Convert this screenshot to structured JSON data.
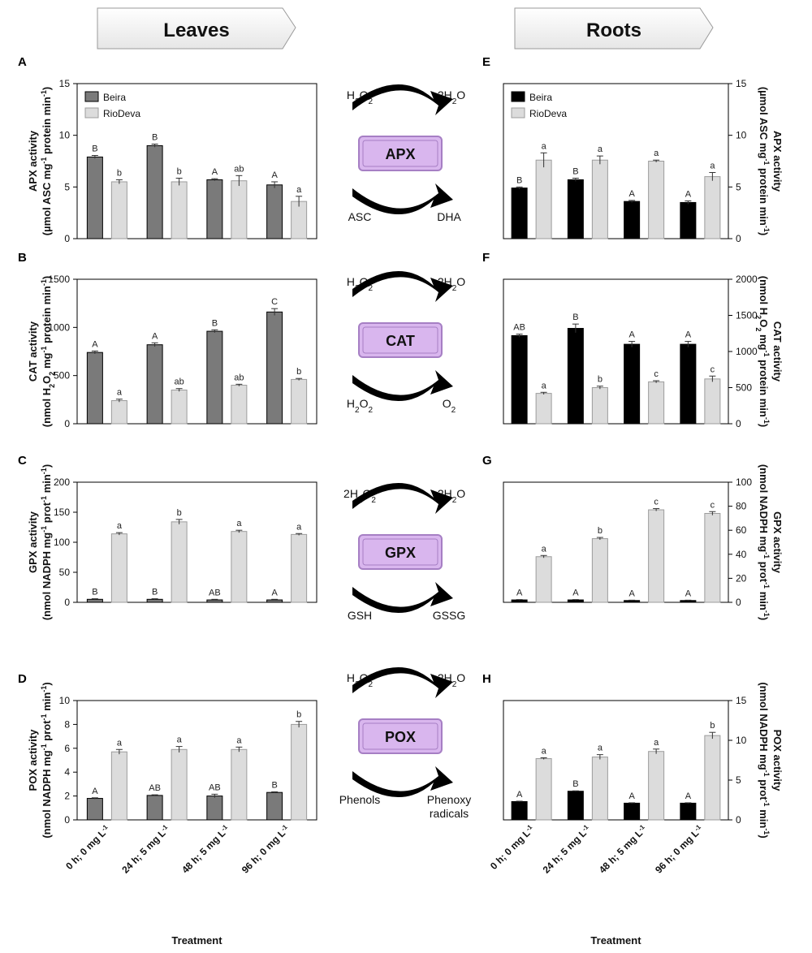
{
  "headers": {
    "left": "Leaves",
    "right": "Roots"
  },
  "x_axis": {
    "categories": [
      "0 h; 0 mg L",
      "24 h; 5 mg L",
      "48 h; 5 mg L",
      "96 h; 0 mg L"
    ],
    "unit_superscript": "-1",
    "label": "Treatment"
  },
  "chart_data": [
    {
      "panel": "A",
      "type": "bar",
      "side": "left",
      "ylabel_line1": "APX activity",
      "ylabel_line2": "(µmol ASC mg",
      "ylabel_line2_sup": "-1",
      "ylabel_line2_tail": " protein min",
      "ylabel_line2_tail_sup": "-1",
      "ylabel_close": ")",
      "ylim": [
        0,
        15
      ],
      "yticks": [
        0,
        5,
        10,
        15
      ],
      "legend": [
        "Beira",
        "RioDeva"
      ],
      "series": [
        {
          "name": "Beira",
          "values": [
            7.9,
            9.0,
            5.7,
            5.2
          ],
          "errors": [
            0.15,
            0.15,
            0.1,
            0.3
          ],
          "labels": [
            "B",
            "B",
            "A",
            "A"
          ]
        },
        {
          "name": "RioDeva",
          "values": [
            5.5,
            5.5,
            5.6,
            3.6
          ],
          "errors": [
            0.2,
            0.35,
            0.5,
            0.5
          ],
          "labels": [
            "b",
            "b",
            "ab",
            "a"
          ]
        }
      ]
    },
    {
      "panel": "B",
      "type": "bar",
      "side": "left",
      "ylabel_line1": "CAT activity",
      "ylabel_line2": "(nmol H",
      "ylabel_line2_sub": "2",
      "ylabel_line2_mid": "O",
      "ylabel_line2_sub2": "2",
      "ylabel_line2_tail": " mg",
      "ylabel_line2_tail_sup": "-1",
      "ylabel_line2_tail2": " protein min",
      "ylabel_line2_tail2_sup": "-1",
      "ylabel_close": ")",
      "ylim": [
        0,
        1500
      ],
      "yticks": [
        0,
        500,
        1000,
        1500
      ],
      "series": [
        {
          "name": "Beira",
          "values": [
            740,
            820,
            960,
            1160
          ],
          "errors": [
            15,
            20,
            15,
            35
          ],
          "labels": [
            "A",
            "A",
            "B",
            "C"
          ]
        },
        {
          "name": "RioDeva",
          "values": [
            240,
            350,
            400,
            460
          ],
          "errors": [
            15,
            15,
            10,
            10
          ],
          "labels": [
            "a",
            "ab",
            "ab",
            "b"
          ]
        }
      ]
    },
    {
      "panel": "C",
      "type": "bar",
      "side": "left",
      "ylabel_line1": "GPX activity",
      "ylabel_line2": "(nmol NADPH mg",
      "ylabel_line2_sup": "-1",
      "ylabel_line2_tail": " prot",
      "ylabel_line2_tail_sup": "-1",
      "ylabel_line2_tail2": " min",
      "ylabel_line2_tail2_sup": "-1",
      "ylabel_close": ")",
      "ylim": [
        0,
        200
      ],
      "yticks": [
        0,
        50,
        100,
        150,
        200
      ],
      "series": [
        {
          "name": "Beira",
          "values": [
            5,
            5,
            4,
            4
          ],
          "errors": [
            1,
            1,
            1,
            1
          ],
          "labels": [
            "B",
            "B",
            "AB",
            "A"
          ]
        },
        {
          "name": "RioDeva",
          "values": [
            114,
            134,
            118,
            113
          ],
          "errors": [
            2,
            4,
            2,
            1.5
          ],
          "labels": [
            "a",
            "b",
            "a",
            "a"
          ]
        }
      ]
    },
    {
      "panel": "D",
      "type": "bar",
      "side": "left",
      "ylabel_line1": "POX activity",
      "ylabel_line2": "(nmol NADPH mg",
      "ylabel_line2_sup": "-1",
      "ylabel_line2_tail": " prot",
      "ylabel_line2_tail_sup": "-1",
      "ylabel_line2_tail2": " min",
      "ylabel_line2_tail2_sup": "-1",
      "ylabel_close": ")",
      "ylim": [
        0,
        10
      ],
      "yticks": [
        0,
        2,
        4,
        6,
        8,
        10
      ],
      "series": [
        {
          "name": "Beira",
          "values": [
            1.8,
            2.05,
            2.0,
            2.3
          ],
          "errors": [
            0.05,
            0.05,
            0.15,
            0.05
          ],
          "labels": [
            "A",
            "AB",
            "AB",
            "B"
          ]
        },
        {
          "name": "RioDeva",
          "values": [
            5.7,
            5.9,
            5.9,
            8.0
          ],
          "errors": [
            0.2,
            0.25,
            0.2,
            0.25
          ],
          "labels": [
            "a",
            "a",
            "a",
            "b"
          ]
        }
      ]
    },
    {
      "panel": "E",
      "type": "bar",
      "side": "right",
      "ylabel_line1": "APX activity",
      "ylabel_line2": "(µmol ASC mg",
      "ylabel_line2_sup": "-1",
      "ylabel_line2_tail": " protein min",
      "ylabel_line2_tail_sup": "-1",
      "ylabel_close": ")",
      "ylim": [
        0,
        15
      ],
      "yticks": [
        0,
        5,
        10,
        15
      ],
      "legend": [
        "Beira",
        "RioDeva"
      ],
      "series": [
        {
          "name": "Beira",
          "values": [
            4.9,
            5.7,
            3.6,
            3.5
          ],
          "errors": [
            0.1,
            0.15,
            0.1,
            0.15
          ],
          "labels": [
            "B",
            "B",
            "A",
            "A"
          ]
        },
        {
          "name": "RioDeva",
          "values": [
            7.6,
            7.6,
            7.5,
            6.0
          ],
          "errors": [
            0.7,
            0.4,
            0.1,
            0.4
          ],
          "labels": [
            "a",
            "a",
            "a",
            "a"
          ]
        }
      ]
    },
    {
      "panel": "F",
      "type": "bar",
      "side": "right",
      "ylabel_line1": "CAT activity",
      "ylabel_line2": "(nmol H",
      "ylabel_line2_sub": "2",
      "ylabel_line2_mid": "O",
      "ylabel_line2_sub2": "2",
      "ylabel_line2_tail": " mg",
      "ylabel_line2_tail_sup": "-1",
      "ylabel_line2_tail2": " protein min",
      "ylabel_line2_tail2_sup": "-1",
      "ylabel_close": ")",
      "ylim": [
        0,
        2000
      ],
      "yticks": [
        0,
        500,
        1000,
        1500,
        2000
      ],
      "series": [
        {
          "name": "Beira",
          "values": [
            1220,
            1320,
            1100,
            1100
          ],
          "errors": [
            20,
            60,
            40,
            40
          ],
          "labels": [
            "AB",
            "B",
            "A",
            "A"
          ]
        },
        {
          "name": "RioDeva",
          "values": [
            420,
            500,
            580,
            620
          ],
          "errors": [
            15,
            20,
            15,
            40
          ],
          "labels": [
            "a",
            "b",
            "c",
            "c"
          ]
        }
      ]
    },
    {
      "panel": "G",
      "type": "bar",
      "side": "right",
      "ylabel_line1": "GPX activity",
      "ylabel_line2": "(nmol NADPH mg",
      "ylabel_line2_sup": "-1",
      "ylabel_line2_tail": " prot",
      "ylabel_line2_tail_sup": "-1",
      "ylabel_line2_tail2": " min",
      "ylabel_line2_tail2_sup": "-1",
      "ylabel_close": ")",
      "ylim": [
        0,
        100
      ],
      "yticks": [
        0,
        20,
        40,
        60,
        80,
        100
      ],
      "series": [
        {
          "name": "Beira",
          "values": [
            2,
            2,
            1.5,
            1.5
          ],
          "errors": [
            0.3,
            0.3,
            0.3,
            0.3
          ],
          "labels": [
            "A",
            "A",
            "A",
            "A"
          ]
        },
        {
          "name": "RioDeva",
          "values": [
            38,
            53,
            77,
            74
          ],
          "errors": [
            1,
            1,
            1,
            1.5
          ],
          "labels": [
            "a",
            "b",
            "c",
            "c"
          ]
        }
      ]
    },
    {
      "panel": "H",
      "type": "bar",
      "side": "right",
      "ylabel_line1": "POX activity",
      "ylabel_line2": "(nmol NADPH mg",
      "ylabel_line2_sup": "-1",
      "ylabel_line2_tail": " prot",
      "ylabel_line2_tail_sup": "-1",
      "ylabel_line2_tail2": " min",
      "ylabel_line2_tail2_sup": "-1",
      "ylabel_close": ")",
      "ylim": [
        0,
        15
      ],
      "yticks": [
        0,
        5,
        10,
        15
      ],
      "series": [
        {
          "name": "Beira",
          "values": [
            2.3,
            3.6,
            2.1,
            2.1
          ],
          "errors": [
            0.05,
            0.05,
            0.05,
            0.05
          ],
          "labels": [
            "A",
            "B",
            "A",
            "A"
          ]
        },
        {
          "name": "RioDeva",
          "values": [
            7.7,
            7.9,
            8.6,
            10.6
          ],
          "errors": [
            0.1,
            0.3,
            0.3,
            0.4
          ],
          "labels": [
            "a",
            "a",
            "a",
            "b"
          ]
        }
      ]
    }
  ],
  "reactions": [
    {
      "enzyme": "APX",
      "top_left": [
        "H",
        "2",
        "O",
        "2",
        ""
      ],
      "top_right": [
        "2H",
        "2",
        "O",
        "",
        ""
      ],
      "bottom_left": "ASC",
      "bottom_right": "DHA"
    },
    {
      "enzyme": "CAT",
      "top_left": [
        "H",
        "2",
        "O",
        "2",
        ""
      ],
      "top_right": [
        "2H",
        "2",
        "O",
        "",
        ""
      ],
      "bottom_left_parts": [
        "H",
        "2",
        "O",
        "2",
        ""
      ],
      "bottom_right_parts": [
        "O",
        "2",
        "",
        "",
        ""
      ]
    },
    {
      "enzyme": "GPX",
      "top_left": [
        "2H",
        "2",
        "O",
        "2",
        ""
      ],
      "top_right": [
        "2H",
        "2",
        "O",
        "",
        ""
      ],
      "bottom_left": "GSH",
      "bottom_right": "GSSG"
    },
    {
      "enzyme": "POX",
      "top_left": [
        "H",
        "2",
        "O",
        "2",
        ""
      ],
      "top_right": [
        "2H",
        "2",
        "O",
        "",
        ""
      ],
      "bottom_left": "Phenols",
      "bottom_right_lines": [
        "Phenoxy",
        "radicals"
      ]
    }
  ],
  "colors": {
    "beira_left": "#7a7a7a",
    "beira_right": "#000000",
    "riodeva": "#dcdcdc",
    "enzyme_fill": "#d9b6ee",
    "enzyme_border": "#a67fc4",
    "header_fill": "#f3f3f3"
  }
}
